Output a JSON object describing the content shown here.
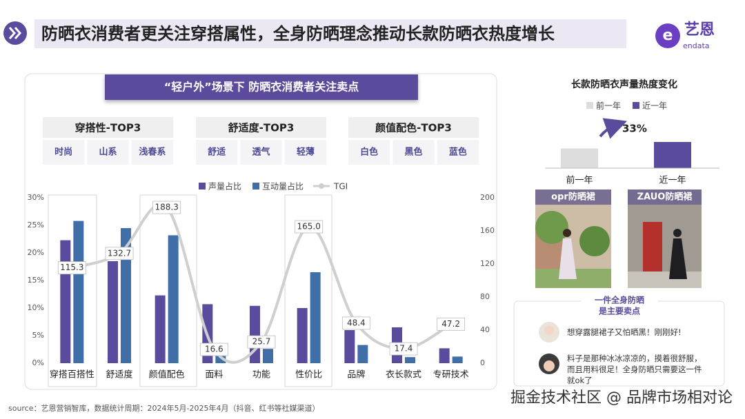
{
  "header": {
    "title": "防晒衣消费者更关注穿搭属性，全身防晒理念推动长款防晒衣热度增长",
    "logo": "艺恩",
    "logo_sub": "endata"
  },
  "left_panel": {
    "banner": "“轻户外”场景下 防晒衣消费者关注卖点",
    "groups": [
      {
        "title": "穿搭性-TOP3",
        "items": [
          "时尚",
          "山系",
          "浅春系"
        ]
      },
      {
        "title": "舒适度-TOP3",
        "items": [
          "舒适",
          "透气",
          "轻薄"
        ]
      },
      {
        "title": "颜值配色-TOP3",
        "items": [
          "白色",
          "黑色",
          "蓝色"
        ]
      }
    ]
  },
  "chart_data": [
    {
      "type": "bar",
      "categories": [
        "穿搭百搭性",
        "舒适度",
        "颜值配色",
        "面料",
        "功能",
        "性价比",
        "品牌",
        "衣长款式",
        "专研技术"
      ],
      "series": [
        {
          "name": "声量占比",
          "color": "#5b4b9d",
          "values": [
            22.3,
            18.5,
            12.3,
            10.7,
            10.4,
            10.0,
            6.0,
            6.5,
            2.7
          ]
        },
        {
          "name": "互动量占比",
          "color": "#3f6fa6",
          "values": [
            25.8,
            24.5,
            23.2,
            1.3,
            2.6,
            16.5,
            3.3,
            1.1,
            1.2
          ]
        },
        {
          "name": "TGI",
          "type": "line",
          "axis": "y2",
          "color": "#cfcfcf",
          "values": [
            115.3,
            132.7,
            188.3,
            16.6,
            25.7,
            165.0,
            48.4,
            17.4,
            47.2
          ],
          "value_labels": [
            "115.3",
            "132.7",
            "188.3",
            "16.6",
            "25.7",
            "165.0",
            "48.4",
            "17.4",
            "47.2"
          ]
        }
      ],
      "ylim": [
        0,
        30
      ],
      "yticks": [
        {
          "value": 0,
          "label": "0%"
        },
        {
          "value": 5,
          "label": "5%"
        },
        {
          "value": 10,
          "label": "10%"
        },
        {
          "value": 15,
          "label": "15%"
        },
        {
          "value": 20,
          "label": "20%"
        },
        {
          "value": 25,
          "label": "25%"
        },
        {
          "value": 30,
          "label": "30%"
        }
      ],
      "y2lim": [
        0,
        200
      ],
      "y2ticks": [
        0,
        40,
        80,
        120,
        160,
        200
      ],
      "grid": false
    },
    {
      "type": "bar",
      "title": "长款防晒衣声量热度变化",
      "categories": [
        "前一年",
        "近一年"
      ],
      "values": [
        100,
        133
      ],
      "colors": [
        "#dcdcdc",
        "#5b4b9d"
      ],
      "annotation": "33%"
    }
  ],
  "right_panel": {
    "products": [
      "opr防晒裙",
      "ZAUO防晒裙"
    ],
    "callout": [
      "一件全身防晒",
      "是主要卖点"
    ],
    "comments": [
      "想穿露腿裙子又怕晒黑！刚刚好!",
      "料子是那种冰冰凉凉的，摸着很舒服，而且用料很足！全身防晒只需要这一件就ok了"
    ]
  },
  "footer": {
    "source": "source：艺恩营销智库，数据统计周期：2024年5月-2025年4月（抖音、红书等社媒渠道）",
    "watermark": "掘金技术社区 @ 品牌市场相对论"
  }
}
